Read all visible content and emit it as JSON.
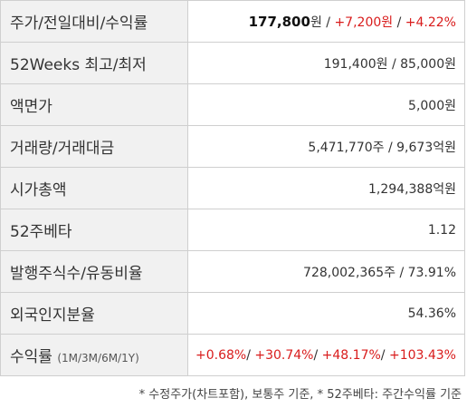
{
  "rows": [
    {
      "label": "주가/전일대비/수익률",
      "price": "177,800",
      "won": "원",
      "sep1": " / ",
      "change": "+7,200원",
      "sep2": " / ",
      "rate": "+4.22%"
    },
    {
      "label": "52Weeks 최고/최저",
      "value": "191,400원 / 85,000원"
    },
    {
      "label": "액면가",
      "value": "5,000원"
    },
    {
      "label": "거래량/거래대금",
      "value": "5,471,770주 / 9,673억원"
    },
    {
      "label": "시가총액",
      "value": "1,294,388억원"
    },
    {
      "label": "52주베타",
      "value": "1.12"
    },
    {
      "label": "발행주식수/유동비율",
      "value": "728,002,365주 / 73.91%"
    },
    {
      "label": "외국인지분율",
      "value": "54.36%"
    },
    {
      "label": "수익률",
      "label_sub": "(1M/3M/6M/1Y)",
      "r1": "+0.68%",
      "r2": "+30.74%",
      "r3": "+48.17%",
      "r4": "+103.43%",
      "slash": "/ "
    }
  ],
  "footnote": "* 수정주가(차트포함), 보통주 기준, * 52주베타: 주간수익률 기준",
  "colors": {
    "positive": "#d91c1c",
    "label_bg": "#f1f1f1",
    "border": "#cfcfcf"
  }
}
